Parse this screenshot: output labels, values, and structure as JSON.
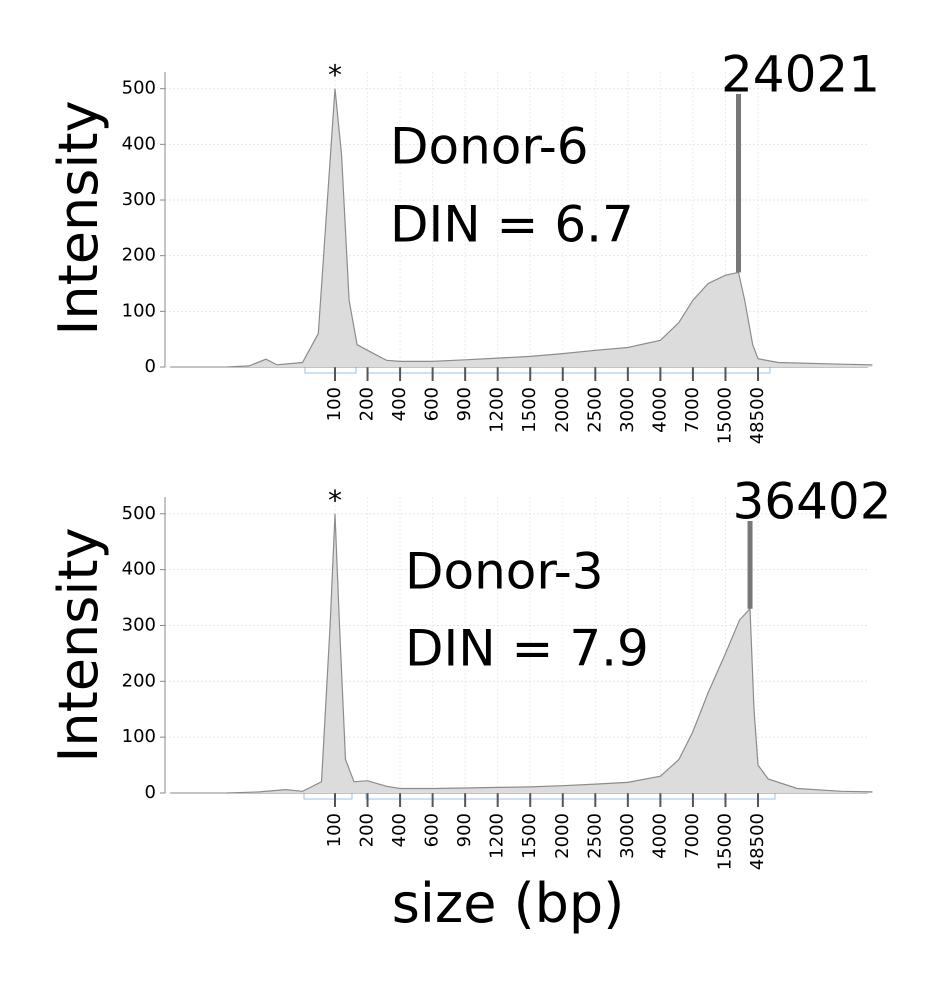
{
  "chart_data": [
    {
      "type": "area",
      "ylabel": "Intensity",
      "label_lines": [
        "Donor-6",
        "DIN = 6.7"
      ],
      "peak_marker": "*",
      "peak_size": 24021,
      "color": "#dcdcdc",
      "line_color": "#8c8c8c",
      "grid": true,
      "xlim": [
        3,
        3000000
      ],
      "ylim": [
        0,
        530
      ],
      "yticks": [
        0,
        100,
        200,
        300,
        400,
        500
      ],
      "xticks": [
        100,
        200,
        400,
        600,
        900,
        1200,
        1500,
        2000,
        2500,
        3000,
        4000,
        7000,
        15000,
        48500
      ],
      "x": [
        10,
        16,
        23,
        29,
        50,
        70,
        85,
        100,
        115,
        135,
        160,
        200,
        300,
        400,
        600,
        900,
        1200,
        1500,
        2000,
        2500,
        3000,
        4000,
        5500,
        7000,
        10000,
        15000,
        24021,
        30000,
        40000,
        48500,
        100000,
        1000000,
        3000000
      ],
      "values": [
        0,
        2,
        14,
        4,
        8,
        60,
        300,
        500,
        380,
        120,
        40,
        30,
        12,
        10,
        10,
        13,
        16,
        19,
        24,
        30,
        35,
        48,
        80,
        120,
        150,
        165,
        170,
        120,
        40,
        15,
        8,
        5,
        4
      ]
    },
    {
      "type": "area",
      "ylabel": "Intensity",
      "label_lines": [
        "Donor-3",
        "DIN = 7.9"
      ],
      "peak_marker": "*",
      "peak_size": 36402,
      "color": "#dcdcdc",
      "line_color": "#8c8c8c",
      "grid": true,
      "xlabel": "size (bp)",
      "xlim": [
        3,
        3000000
      ],
      "ylim": [
        0,
        530
      ],
      "yticks": [
        0,
        100,
        200,
        300,
        400,
        500
      ],
      "xticks": [
        100,
        200,
        400,
        600,
        900,
        1200,
        1500,
        2000,
        2500,
        3000,
        4000,
        7000,
        15000,
        48500
      ],
      "x": [
        10,
        20,
        35,
        50,
        75,
        90,
        100,
        110,
        125,
        150,
        200,
        300,
        400,
        600,
        900,
        1200,
        1500,
        2000,
        2500,
        3000,
        4000,
        5500,
        7000,
        10000,
        15000,
        25000,
        36402,
        42000,
        48500,
        70000,
        200000,
        1000000,
        3000000
      ],
      "values": [
        0,
        2,
        6,
        3,
        20,
        300,
        500,
        300,
        60,
        20,
        22,
        12,
        8,
        8,
        9,
        10,
        11,
        13,
        16,
        19,
        30,
        60,
        110,
        180,
        250,
        310,
        330,
        150,
        50,
        25,
        8,
        3,
        2
      ]
    }
  ]
}
